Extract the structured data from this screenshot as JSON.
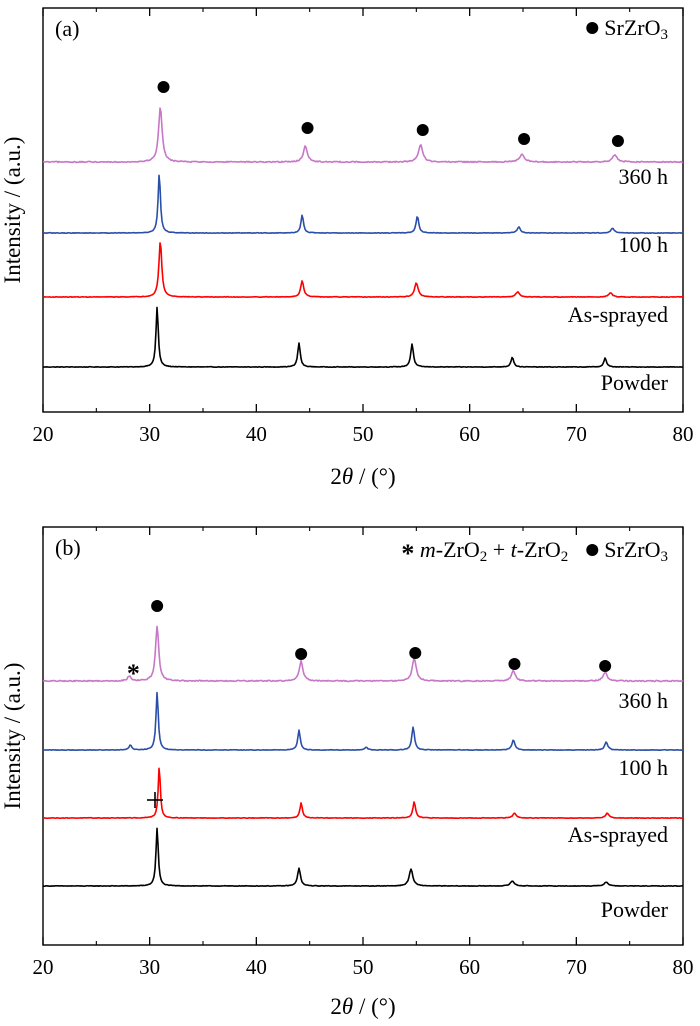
{
  "chart_data": [
    {
      "type": "line",
      "panel_label": "(a)",
      "xlabel_prefix": "2",
      "xlabel_theta": "θ",
      "xlabel_suffix": " / (°)",
      "ylabel": "Intensity / (a.u.)",
      "xlim": [
        20,
        80
      ],
      "xticks": [
        "20",
        "30",
        "40",
        "50",
        "60",
        "70",
        "80"
      ],
      "legend": [
        {
          "marker": "dot",
          "parts": [
            {
              "t": "SrZrO"
            },
            {
              "t": "3",
              "sub": true
            }
          ]
        }
      ],
      "series": [
        {
          "name": "Powder",
          "color": "#000000",
          "baseline": 0,
          "peaks": [
            {
              "x": 30.7,
              "h": 60,
              "w": 0.13
            },
            {
              "x": 44.0,
              "h": 24,
              "w": 0.14
            },
            {
              "x": 54.6,
              "h": 23,
              "w": 0.15
            },
            {
              "x": 64.0,
              "h": 10,
              "w": 0.15
            },
            {
              "x": 72.7,
              "h": 9,
              "w": 0.15
            }
          ]
        },
        {
          "name": "As-sprayed",
          "color": "#ff0000",
          "baseline": 70,
          "peaks": [
            {
              "x": 31.0,
              "h": 56,
              "w": 0.16
            },
            {
              "x": 44.3,
              "h": 16,
              "w": 0.17
            },
            {
              "x": 55.0,
              "h": 14,
              "w": 0.2
            },
            {
              "x": 64.5,
              "h": 5,
              "w": 0.22
            },
            {
              "x": 73.2,
              "h": 4,
              "w": 0.22
            }
          ]
        },
        {
          "name": "100 h",
          "color": "#2b4fa8",
          "baseline": 134,
          "peaks": [
            {
              "x": 30.9,
              "h": 60,
              "w": 0.13
            },
            {
              "x": 44.3,
              "h": 18,
              "w": 0.14
            },
            {
              "x": 55.1,
              "h": 17,
              "w": 0.15
            },
            {
              "x": 64.6,
              "h": 6,
              "w": 0.18
            },
            {
              "x": 73.4,
              "h": 5,
              "w": 0.18
            }
          ]
        },
        {
          "name": "360 h",
          "color": "#c777c7",
          "baseline": 205,
          "peaks": [
            {
              "x": 31.0,
              "h": 55,
              "w": 0.2
            },
            {
              "x": 44.6,
              "h": 16,
              "w": 0.22
            },
            {
              "x": 55.4,
              "h": 17,
              "w": 0.24
            },
            {
              "x": 64.9,
              "h": 8,
              "w": 0.26
            },
            {
              "x": 73.6,
              "h": 7,
              "w": 0.26
            }
          ]
        }
      ],
      "markers": [
        {
          "type": "dot",
          "x": 31.3,
          "level": 280
        },
        {
          "type": "dot",
          "x": 44.8,
          "level": 239
        },
        {
          "type": "dot",
          "x": 55.6,
          "level": 237
        },
        {
          "type": "dot",
          "x": 65.1,
          "level": 228
        },
        {
          "type": "dot",
          "x": 73.9,
          "level": 226
        }
      ]
    },
    {
      "type": "line",
      "panel_label": "(b)",
      "xlabel_prefix": "2",
      "xlabel_theta": "θ",
      "xlabel_suffix": " / (°)",
      "ylabel": "Intensity / (a.u.)",
      "xlim": [
        20,
        80
      ],
      "xticks": [
        "20",
        "30",
        "40",
        "50",
        "60",
        "70",
        "80"
      ],
      "legend": [
        {
          "marker": "star",
          "parts": [
            {
              "t": "m",
              "it": true
            },
            {
              "t": "-ZrO"
            },
            {
              "t": "2",
              "sub": true
            },
            {
              "t": " + "
            },
            {
              "t": "t",
              "it": true
            },
            {
              "t": "-ZrO"
            },
            {
              "t": "2",
              "sub": true
            }
          ]
        },
        {
          "marker": "dot",
          "parts": [
            {
              "t": "SrZrO"
            },
            {
              "t": "3",
              "sub": true
            }
          ]
        }
      ],
      "series": [
        {
          "name": "Powder",
          "color": "#000000",
          "baseline": 0,
          "peaks": [
            {
              "x": 30.7,
              "h": 58,
              "w": 0.13
            },
            {
              "x": 44.0,
              "h": 18,
              "w": 0.16
            },
            {
              "x": 54.5,
              "h": 17,
              "w": 0.2
            },
            {
              "x": 64.0,
              "h": 5,
              "w": 0.22
            },
            {
              "x": 72.8,
              "h": 4,
              "w": 0.22
            }
          ]
        },
        {
          "name": "As-sprayed",
          "color": "#ff0000",
          "baseline": 68,
          "peaks": [
            {
              "x": 30.9,
              "h": 52,
              "w": 0.12
            },
            {
              "x": 44.2,
              "h": 15,
              "w": 0.14
            },
            {
              "x": 54.8,
              "h": 16,
              "w": 0.15
            },
            {
              "x": 64.2,
              "h": 5,
              "w": 0.18
            },
            {
              "x": 72.9,
              "h": 5,
              "w": 0.18
            }
          ]
        },
        {
          "name": "100 h",
          "color": "#2b4fa8",
          "baseline": 136,
          "peaks": [
            {
              "x": 30.7,
              "h": 58,
              "w": 0.13
            },
            {
              "x": 28.2,
              "h": 5,
              "w": 0.15
            },
            {
              "x": 44.0,
              "h": 20,
              "w": 0.14
            },
            {
              "x": 54.7,
              "h": 23,
              "w": 0.15
            },
            {
              "x": 50.3,
              "h": 3,
              "w": 0.15
            },
            {
              "x": 64.1,
              "h": 10,
              "w": 0.17
            },
            {
              "x": 72.8,
              "h": 8,
              "w": 0.17
            }
          ]
        },
        {
          "name": "360 h",
          "color": "#c777c7",
          "baseline": 205,
          "peaks": [
            {
              "x": 30.7,
              "h": 55,
              "w": 0.18
            },
            {
              "x": 28.1,
              "h": 5,
              "w": 0.2
            },
            {
              "x": 44.2,
              "h": 20,
              "w": 0.2
            },
            {
              "x": 54.8,
              "h": 23,
              "w": 0.22
            },
            {
              "x": 64.1,
              "h": 10,
              "w": 0.22
            },
            {
              "x": 72.7,
              "h": 9,
              "w": 0.22
            }
          ]
        }
      ],
      "markers": [
        {
          "type": "dot",
          "x": 30.7,
          "level": 280
        },
        {
          "type": "star",
          "x": 28.1,
          "level": 218
        },
        {
          "type": "dot",
          "x": 44.2,
          "level": 232
        },
        {
          "type": "dot",
          "x": 54.9,
          "level": 233
        },
        {
          "type": "dot",
          "x": 64.2,
          "level": 222
        },
        {
          "type": "dot",
          "x": 72.7,
          "level": 220
        },
        {
          "type": "plus",
          "x": 30.5,
          "level": 86
        }
      ]
    }
  ]
}
